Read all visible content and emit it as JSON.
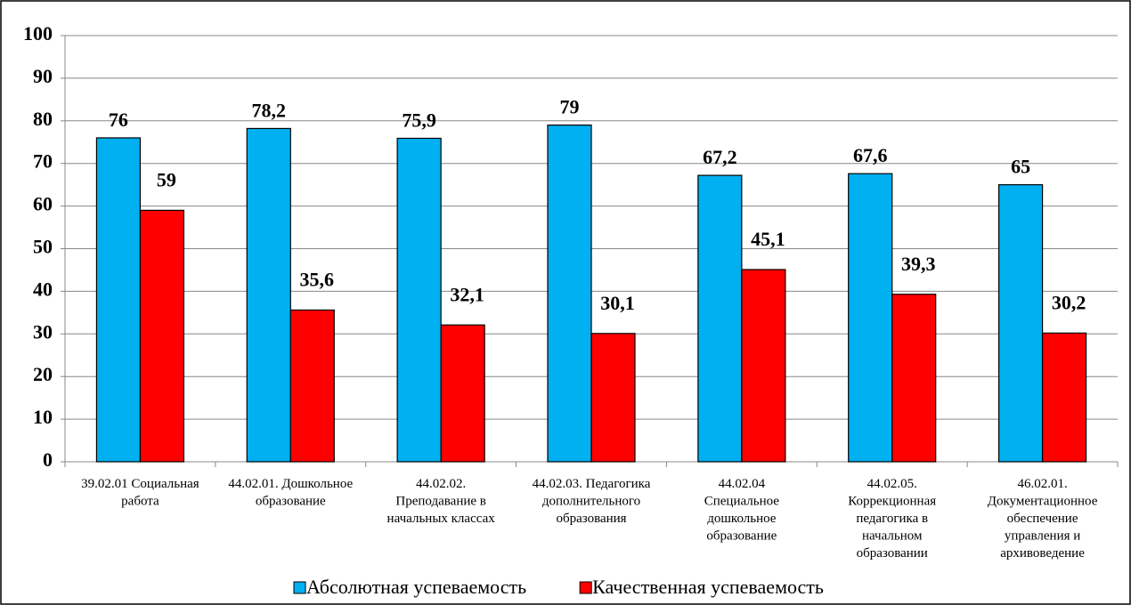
{
  "chart_data": {
    "type": "bar",
    "categories": [
      "39.02.01 Социальная работа",
      "44.02.01. Дошкольное образование",
      "44.02.02. Преподавание в начальных классах",
      "44.02.03. Педагогика дополнительного образования",
      "44.02.04 Специальное дошкольное образование",
      "44.02.05. Коррекционная педагогика в начальном образовании",
      "46.02.01. Документационное обеспечение управления и архивоведение"
    ],
    "series": [
      {
        "name": "Абсолютная успеваемость",
        "color": "#00b0f0",
        "values": [
          76,
          78.2,
          75.9,
          79,
          67.2,
          67.6,
          65
        ],
        "value_labels": [
          "76",
          "78,2",
          "75,9",
          "79",
          "67,2",
          "67,6",
          "65"
        ]
      },
      {
        "name": "Качественная успеваемость",
        "color": "#ff0000",
        "values": [
          59,
          35.6,
          32.1,
          30.1,
          45.1,
          39.3,
          30.2
        ],
        "value_labels": [
          "59",
          "35,6",
          "32,1",
          "30,1",
          "45,1",
          "39,3",
          "30,2"
        ]
      }
    ],
    "ylim": [
      0,
      100
    ],
    "yticks": [
      0,
      10,
      20,
      30,
      40,
      50,
      60,
      70,
      80,
      90,
      100
    ],
    "grid": true,
    "legend": "bottom"
  }
}
